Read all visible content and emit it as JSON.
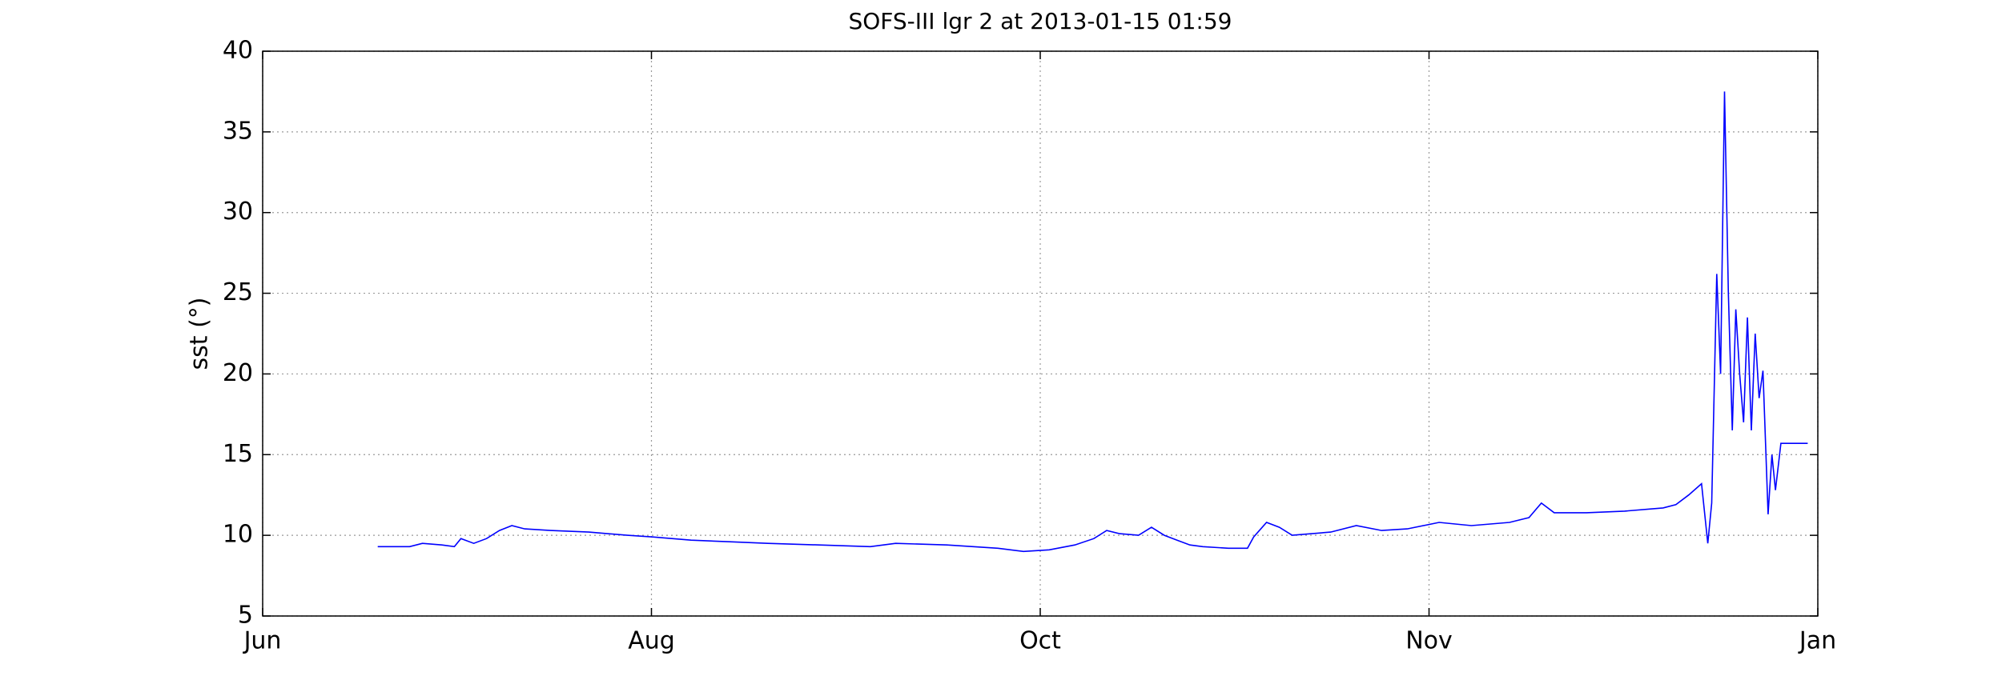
{
  "chart_data": {
    "type": "line",
    "title": "SOFS-III lgr 2 at 2013-01-15 01:59",
    "y_label": "sst (°)",
    "xlim": [
      0,
      4
    ],
    "xticks": [
      {
        "value": 0,
        "label": "Jun"
      },
      {
        "value": 1,
        "label": "Aug"
      },
      {
        "value": 2,
        "label": "Oct"
      },
      {
        "value": 3,
        "label": "Nov"
      },
      {
        "value": 4,
        "label": "Jan"
      }
    ],
    "ylim": [
      5,
      40
    ],
    "yticks": [
      5,
      10,
      15,
      20,
      25,
      30,
      35,
      40
    ],
    "grid": true,
    "x": [
      0.296,
      0.378,
      0.411,
      0.461,
      0.493,
      0.51,
      0.543,
      0.576,
      0.609,
      0.641,
      0.674,
      0.74,
      0.839,
      0.938,
      1.003,
      1.102,
      1.201,
      1.299,
      1.431,
      1.563,
      1.628,
      1.76,
      1.891,
      1.957,
      2.023,
      2.089,
      2.138,
      2.171,
      2.204,
      2.253,
      2.286,
      2.319,
      2.352,
      2.385,
      2.418,
      2.484,
      2.533,
      2.549,
      2.582,
      2.615,
      2.648,
      2.747,
      2.813,
      2.878,
      2.944,
      3.026,
      3.109,
      3.207,
      3.257,
      3.289,
      3.322,
      3.405,
      3.503,
      3.602,
      3.635,
      3.668,
      3.701,
      3.717,
      3.727,
      3.74,
      3.75,
      3.76,
      3.77,
      3.78,
      3.789,
      3.799,
      3.809,
      3.819,
      3.829,
      3.839,
      3.849,
      3.859,
      3.872,
      3.882,
      3.891,
      3.905,
      3.974
    ],
    "series": [
      {
        "color": "#0000ff",
        "values": [
          9.3,
          9.3,
          9.5,
          9.4,
          9.3,
          9.8,
          9.5,
          9.8,
          10.3,
          10.6,
          10.4,
          10.3,
          10.2,
          10.0,
          9.9,
          9.7,
          9.6,
          9.5,
          9.4,
          9.3,
          9.5,
          9.4,
          9.2,
          9.0,
          9.1,
          9.4,
          9.8,
          10.3,
          10.1,
          10.0,
          10.5,
          10.0,
          9.7,
          9.4,
          9.3,
          9.2,
          9.2,
          9.9,
          10.8,
          10.5,
          10.0,
          10.2,
          10.6,
          10.3,
          10.4,
          10.8,
          10.6,
          10.8,
          11.1,
          12.0,
          11.4,
          11.4,
          11.5,
          11.7,
          11.9,
          12.5,
          13.2,
          9.5,
          12,
          26.2,
          20,
          37.5,
          25,
          16.5,
          24,
          20,
          17,
          23.5,
          16.5,
          22.5,
          18.5,
          20.2,
          11.3,
          15,
          12.8,
          15.7,
          15.7
        ]
      }
    ]
  }
}
